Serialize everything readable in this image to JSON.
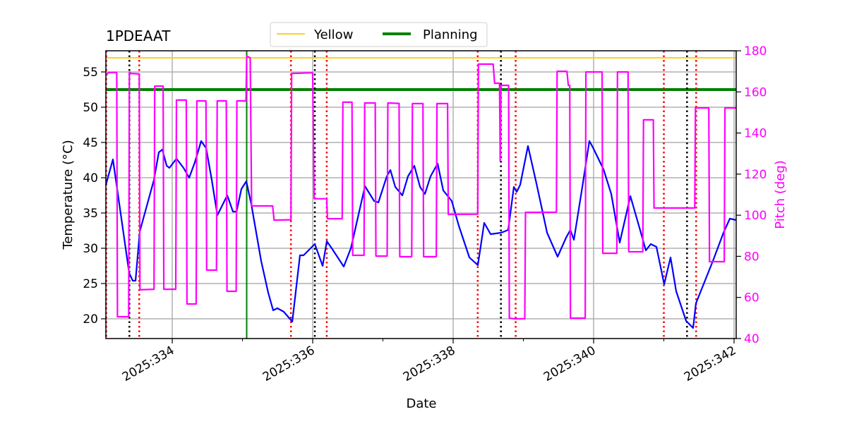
{
  "chart_data": {
    "type": "line",
    "title": "1PDEAAT",
    "xlabel": "Date",
    "ylabel": "Temperature ($^\\circ$C)",
    "ylabel_display": "Temperature (°C)",
    "y2label": "Pitch (deg)",
    "xlim": [
      333.055,
      342.03
    ],
    "ylim": [
      17.2,
      58.0
    ],
    "y2lim": [
      40,
      180
    ],
    "grid": true,
    "x_ticks": [
      334,
      336,
      338,
      340,
      342
    ],
    "x_tick_labels": [
      "2025:334",
      "2025:336",
      "2025:338",
      "2025:340",
      "2025:342"
    ],
    "x_minor_ticks": [
      335,
      337,
      339,
      341
    ],
    "y_ticks": [
      20,
      25,
      30,
      35,
      40,
      45,
      50,
      55
    ],
    "y_tick_labels": [
      "20",
      "25",
      "30",
      "35",
      "40",
      "45",
      "50",
      "55"
    ],
    "y2_ticks": [
      40,
      60,
      80,
      100,
      120,
      140,
      160,
      180
    ],
    "y2_tick_labels": [
      "40",
      "60",
      "80",
      "100",
      "120",
      "140",
      "160",
      "180"
    ],
    "legend": {
      "placement": "top-center",
      "entries": [
        {
          "label": "Yellow",
          "color": "#ffd21f"
        },
        {
          "label": "Planning",
          "color": "#008000"
        }
      ]
    },
    "limits": [
      {
        "name": "Yellow",
        "value": 57.0,
        "color": "#ffd21f"
      },
      {
        "name": "Planning",
        "value": 52.5,
        "color": "#008000"
      }
    ],
    "vlines": {
      "red_dotted": [
        333.06,
        333.53,
        335.69,
        336.2,
        338.35,
        338.89,
        341.0,
        341.46
      ],
      "black_dotted": [
        333.39,
        336.03,
        338.68,
        341.33
      ],
      "green_solid": [
        335.06
      ]
    },
    "colors": {
      "temperature": "#0000ff",
      "pitch": "#ff00ff",
      "red": "#ff0000",
      "black": "#000000",
      "green": "#008000",
      "grid": "#b0b0b0"
    },
    "series": [
      {
        "name": "Temperature",
        "axis": "left",
        "points": [
          [
            333.055,
            39
          ],
          [
            333.156,
            42.6
          ],
          [
            333.387,
            26.5
          ],
          [
            333.437,
            25.4
          ],
          [
            333.477,
            25.4
          ],
          [
            333.538,
            32.4
          ],
          [
            333.739,
            39.7
          ],
          [
            333.809,
            43.6
          ],
          [
            333.859,
            44
          ],
          [
            333.92,
            41.7
          ],
          [
            333.96,
            41.4
          ],
          [
            334.06,
            42.7
          ],
          [
            334.161,
            41.4
          ],
          [
            334.241,
            40
          ],
          [
            334.322,
            42.2
          ],
          [
            334.412,
            45.2
          ],
          [
            334.482,
            44.2
          ],
          [
            334.563,
            39.7
          ],
          [
            334.643,
            34.7
          ],
          [
            334.784,
            37.5
          ],
          [
            334.864,
            35.2
          ],
          [
            334.915,
            35.2
          ],
          [
            334.985,
            38.4
          ],
          [
            335.055,
            39.5
          ],
          [
            335.126,
            36.2
          ],
          [
            335.266,
            28.2
          ],
          [
            335.367,
            23.7
          ],
          [
            335.437,
            21.2
          ],
          [
            335.497,
            21.5
          ],
          [
            335.588,
            21
          ],
          [
            335.709,
            19.6
          ],
          [
            335.819,
            29
          ],
          [
            335.869,
            29
          ],
          [
            336.03,
            30.6
          ],
          [
            336.141,
            27.5
          ],
          [
            336.201,
            31
          ],
          [
            336.271,
            30
          ],
          [
            336.442,
            27.4
          ],
          [
            336.543,
            30
          ],
          [
            336.744,
            38.8
          ],
          [
            336.874,
            36.7
          ],
          [
            336.935,
            36.5
          ],
          [
            337.055,
            40.2
          ],
          [
            337.106,
            41.1
          ],
          [
            337.176,
            38.7
          ],
          [
            337.276,
            37.5
          ],
          [
            337.357,
            40.2
          ],
          [
            337.447,
            41.7
          ],
          [
            337.528,
            38.7
          ],
          [
            337.598,
            37.7
          ],
          [
            337.678,
            40.2
          ],
          [
            337.779,
            42
          ],
          [
            337.859,
            38.2
          ],
          [
            337.98,
            36.7
          ],
          [
            338.08,
            33.2
          ],
          [
            338.231,
            28.7
          ],
          [
            338.352,
            27.6
          ],
          [
            338.442,
            33.6
          ],
          [
            338.533,
            32
          ],
          [
            338.683,
            32.2
          ],
          [
            338.784,
            32.6
          ],
          [
            338.864,
            38.7
          ],
          [
            338.905,
            38
          ],
          [
            338.955,
            39
          ],
          [
            339.065,
            44.5
          ],
          [
            339.186,
            39.2
          ],
          [
            339.337,
            32.2
          ],
          [
            339.487,
            28.8
          ],
          [
            339.608,
            31.5
          ],
          [
            339.668,
            32.6
          ],
          [
            339.719,
            31.2
          ],
          [
            339.839,
            38.7
          ],
          [
            339.94,
            45.2
          ],
          [
            339.99,
            44.3
          ],
          [
            340.141,
            41.2
          ],
          [
            340.251,
            37.7
          ],
          [
            340.372,
            30.8
          ],
          [
            340.523,
            37.4
          ],
          [
            340.673,
            32.2
          ],
          [
            340.744,
            29.7
          ],
          [
            340.814,
            30.6
          ],
          [
            340.894,
            30.2
          ],
          [
            341.005,
            24.9
          ],
          [
            341.095,
            28.7
          ],
          [
            341.176,
            23.9
          ],
          [
            341.317,
            19.7
          ],
          [
            341.417,
            18.7
          ],
          [
            341.457,
            22.2
          ],
          [
            341.598,
            25.7
          ],
          [
            341.698,
            28.2
          ],
          [
            341.849,
            32.2
          ],
          [
            341.94,
            34.2
          ],
          [
            342.03,
            34
          ]
        ]
      },
      {
        "name": "Pitch",
        "axis": "right",
        "points": [
          [
            333.06,
            168
          ],
          [
            333.09,
            169.4
          ],
          [
            333.21,
            169.5
          ],
          [
            333.22,
            50.6
          ],
          [
            333.38,
            50.6
          ],
          [
            333.39,
            169.6
          ],
          [
            333.41,
            169
          ],
          [
            333.53,
            168.7
          ],
          [
            333.54,
            63.7
          ],
          [
            333.74,
            64
          ],
          [
            333.75,
            162.8
          ],
          [
            333.87,
            162.8
          ],
          [
            333.88,
            64
          ],
          [
            334.05,
            64
          ],
          [
            334.06,
            156
          ],
          [
            334.2,
            156
          ],
          [
            334.21,
            56.8
          ],
          [
            334.34,
            56.8
          ],
          [
            334.35,
            155.6
          ],
          [
            334.48,
            155.6
          ],
          [
            334.49,
            73.3
          ],
          [
            334.63,
            73.3
          ],
          [
            334.64,
            155.6
          ],
          [
            334.77,
            155.6
          ],
          [
            334.78,
            63
          ],
          [
            334.91,
            63
          ],
          [
            334.92,
            155.6
          ],
          [
            335.05,
            155.6
          ],
          [
            335.06,
            177.5
          ],
          [
            335.11,
            176.5
          ],
          [
            335.13,
            104.5
          ],
          [
            335.43,
            104.5
          ],
          [
            335.45,
            97.6
          ],
          [
            335.69,
            97.8
          ],
          [
            335.7,
            169
          ],
          [
            336.0,
            169.3
          ],
          [
            336.02,
            108
          ],
          [
            336.2,
            108
          ],
          [
            336.21,
            98.3
          ],
          [
            336.42,
            98.3
          ],
          [
            336.43,
            155
          ],
          [
            336.56,
            155
          ],
          [
            336.57,
            80.5
          ],
          [
            336.73,
            80.5
          ],
          [
            336.74,
            154.6
          ],
          [
            336.89,
            154.6
          ],
          [
            336.9,
            80.1
          ],
          [
            337.06,
            80.1
          ],
          [
            337.07,
            154.6
          ],
          [
            337.23,
            154.4
          ],
          [
            337.24,
            79.8
          ],
          [
            337.41,
            79.8
          ],
          [
            337.42,
            154.3
          ],
          [
            337.57,
            154.3
          ],
          [
            337.58,
            79.8
          ],
          [
            337.76,
            79.8
          ],
          [
            337.77,
            154.3
          ],
          [
            337.92,
            154.3
          ],
          [
            337.93,
            100.4
          ],
          [
            338.35,
            100.5
          ],
          [
            338.36,
            173.5
          ],
          [
            338.57,
            173.5
          ],
          [
            338.59,
            164.2
          ],
          [
            338.66,
            164.2
          ],
          [
            338.67,
            126.5
          ],
          [
            338.68,
            163.2
          ],
          [
            338.79,
            163.2
          ],
          [
            338.8,
            49.9
          ],
          [
            338.88,
            49.6
          ],
          [
            339.02,
            49.6
          ],
          [
            339.03,
            101.4
          ],
          [
            339.47,
            101.5
          ],
          [
            339.48,
            170
          ],
          [
            339.62,
            170
          ],
          [
            339.64,
            163.2
          ],
          [
            339.66,
            163.2
          ],
          [
            339.67,
            49.9
          ],
          [
            339.88,
            49.9
          ],
          [
            339.89,
            169.7
          ],
          [
            340.12,
            169.7
          ],
          [
            340.13,
            81.5
          ],
          [
            340.33,
            81.5
          ],
          [
            340.34,
            169.7
          ],
          [
            340.49,
            169.7
          ],
          [
            340.5,
            82.2
          ],
          [
            340.7,
            82.2
          ],
          [
            340.71,
            146.4
          ],
          [
            340.85,
            146.4
          ],
          [
            340.86,
            103.5
          ],
          [
            341.44,
            103.5
          ],
          [
            341.45,
            152.2
          ],
          [
            341.64,
            152.2
          ],
          [
            341.65,
            77.4
          ],
          [
            341.86,
            77.4
          ],
          [
            341.87,
            152.2
          ],
          [
            342.03,
            152.2
          ]
        ]
      }
    ]
  }
}
